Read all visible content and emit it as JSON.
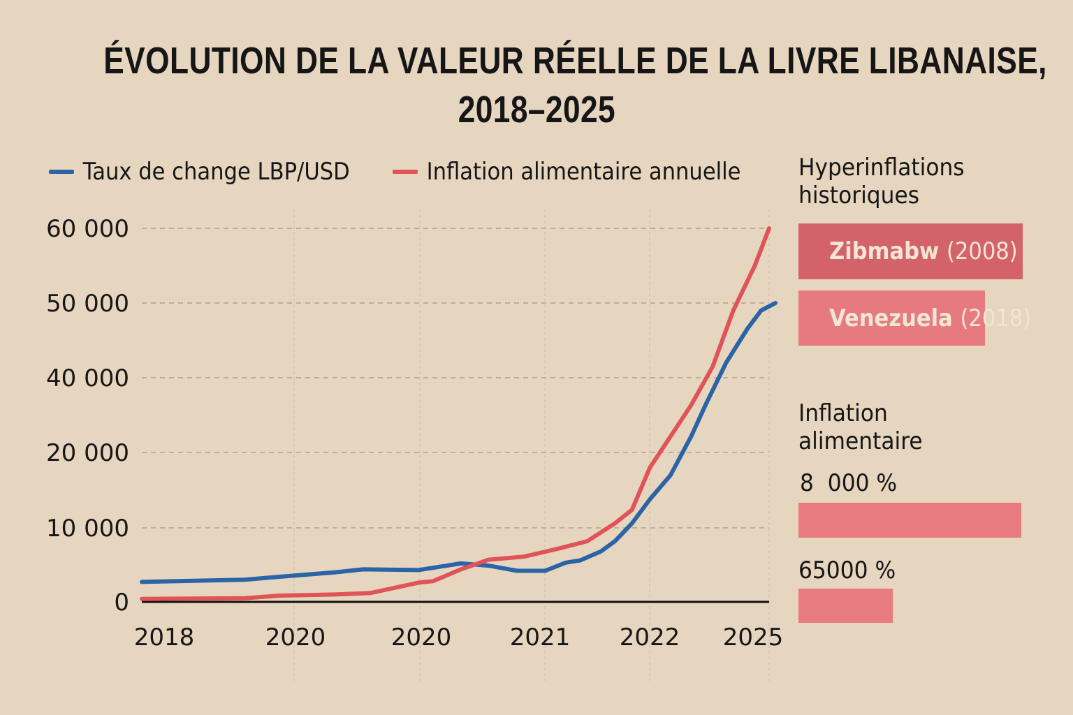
{
  "chart_data": {
    "type": "line",
    "title": "ÉVOLUTION DE LA VALEUR RÉELLE DE LA LIVRE LIBANAISE, 2018–2025",
    "title_lines": [
      "ÉVOLUTION DE LA VALEUR RÉELLE DE LA LIVRE LIBANAISE,",
      "2018–2025"
    ],
    "xlabel": "",
    "ylabel": "",
    "x_ticks": [
      "2018",
      "2020",
      "2020",
      "2021",
      "2022",
      "2025"
    ],
    "y_ticks": [
      {
        "label": "0",
        "value": 0
      },
      {
        "label": "10 000",
        "value": 10000
      },
      {
        "label": "20 000",
        "value": 20000
      },
      {
        "label": "40 000",
        "value": 40000
      },
      {
        "label": "50 000",
        "value": 50000
      },
      {
        "label": "60 000",
        "value": 60000
      }
    ],
    "xlim": [
      2018,
      2025
    ],
    "ylim": [
      0,
      60000
    ],
    "grid": true,
    "legend_position": "top",
    "series": [
      {
        "name": "Taux de change LBP/USD",
        "color": "#2a63a6",
        "points": [
          [
            2018.0,
            2700
          ],
          [
            2019.15,
            3000
          ],
          [
            2019.54,
            3400
          ],
          [
            2020.16,
            4000
          ],
          [
            2020.47,
            4400
          ],
          [
            2021.09,
            4300
          ],
          [
            2021.56,
            5200
          ],
          [
            2021.87,
            4900
          ],
          [
            2022.19,
            4200
          ],
          [
            2022.5,
            4200
          ],
          [
            2022.73,
            5300
          ],
          [
            2022.89,
            5600
          ],
          [
            2023.12,
            6800
          ],
          [
            2023.28,
            8200
          ],
          [
            2023.47,
            10600
          ],
          [
            2023.67,
            13800
          ],
          [
            2023.9,
            17000
          ],
          [
            2024.13,
            24300
          ],
          [
            2024.29,
            32700
          ],
          [
            2024.52,
            42000
          ],
          [
            2024.76,
            46600
          ],
          [
            2024.91,
            49000
          ],
          [
            2025.07,
            50000
          ]
        ]
      },
      {
        "name": "Inflation alimentaire annuelle",
        "color": "#e05358",
        "points": [
          [
            2018.0,
            400
          ],
          [
            2019.15,
            500
          ],
          [
            2019.54,
            850
          ],
          [
            2020.16,
            1000
          ],
          [
            2020.55,
            1200
          ],
          [
            2021.09,
            2600
          ],
          [
            2021.25,
            2800
          ],
          [
            2021.56,
            4400
          ],
          [
            2021.87,
            5700
          ],
          [
            2022.26,
            6100
          ],
          [
            2022.65,
            7200
          ],
          [
            2022.97,
            8200
          ],
          [
            2023.28,
            10600
          ],
          [
            2023.47,
            12400
          ],
          [
            2023.67,
            18000
          ],
          [
            2023.9,
            24300
          ],
          [
            2024.13,
            32700
          ],
          [
            2024.37,
            41500
          ],
          [
            2024.6,
            49000
          ],
          [
            2024.84,
            55000
          ],
          [
            2025.0,
            60000
          ]
        ]
      }
    ]
  },
  "side_panel": {
    "hyper_title_lines": [
      "Hyperinflations",
      "historiques"
    ],
    "hyper_items": [
      {
        "country": "Zibmabw",
        "year": "(2008)",
        "color": "#d4626a"
      },
      {
        "country": "Venezuela",
        "year": "(2018)",
        "color": "#e77a80"
      }
    ],
    "food_title_lines": [
      "Inflation",
      "alimentaire"
    ],
    "food_items": [
      {
        "label": "8  000 %",
        "color": "#e87b80"
      },
      {
        "label": "65000 %",
        "color": "#e87b80"
      }
    ]
  },
  "colors": {
    "background": "#e6d5bf",
    "grid": "#bfae98",
    "axis": "#111111"
  }
}
